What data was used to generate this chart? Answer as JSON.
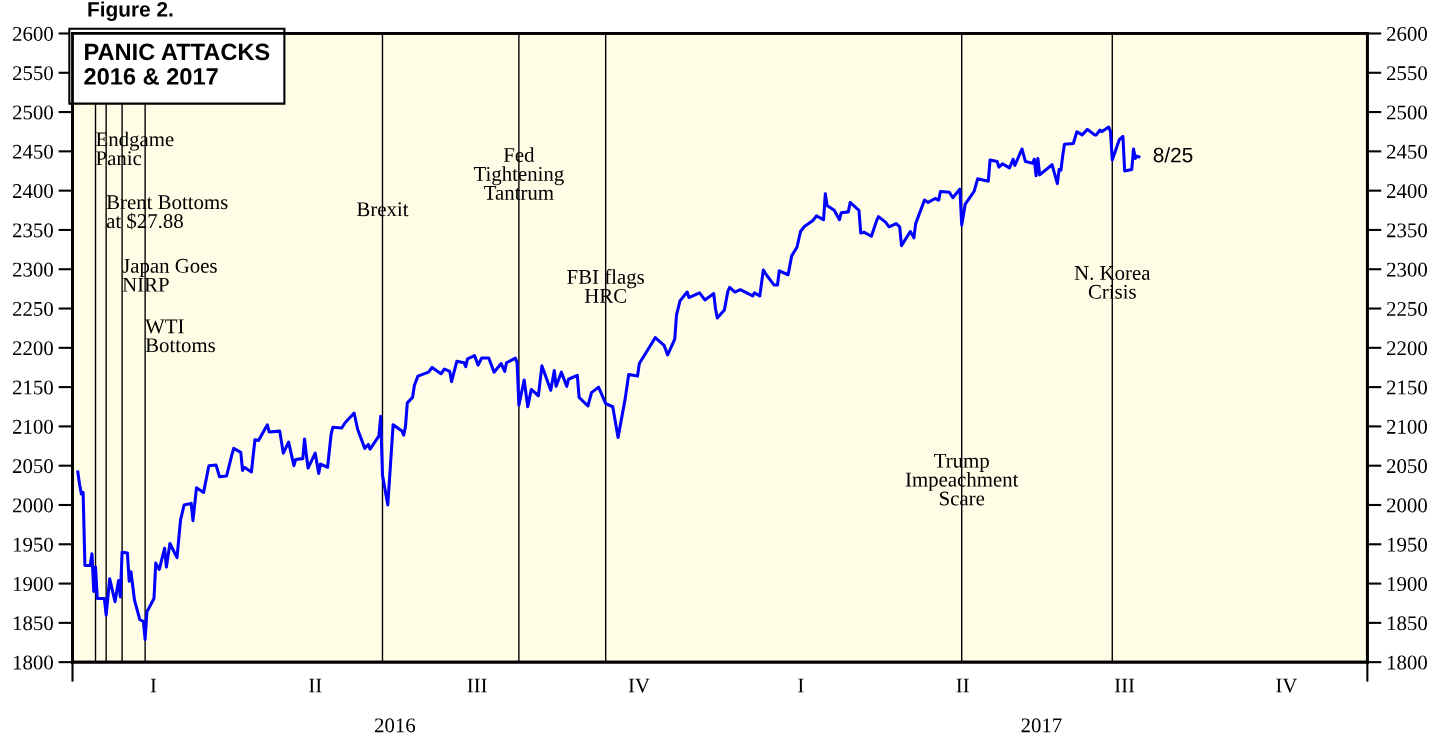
{
  "chart_data": {
    "type": "line",
    "title": "PANIC ATTACKS\n2016 & 2017",
    "series": [
      {
        "color": "#0000ff",
        "x": [
          "2016-01-04",
          "2016-01-05",
          "2016-01-06",
          "2016-01-07",
          "2016-01-08",
          "2016-01-11",
          "2016-01-12",
          "2016-01-13",
          "2016-01-14",
          "2016-01-15",
          "2016-01-19",
          "2016-01-20",
          "2016-01-22",
          "2016-01-25",
          "2016-01-27",
          "2016-01-28",
          "2016-01-29",
          "2016-02-01",
          "2016-02-02",
          "2016-02-03",
          "2016-02-05",
          "2016-02-08",
          "2016-02-10",
          "2016-02-11",
          "2016-02-12",
          "2016-02-16",
          "2016-02-17",
          "2016-02-19",
          "2016-02-22",
          "2016-02-23",
          "2016-02-25",
          "2016-02-29",
          "2016-03-02",
          "2016-03-04",
          "2016-03-08",
          "2016-03-09",
          "2016-03-11",
          "2016-03-15",
          "2016-03-18",
          "2016-03-22",
          "2016-03-24",
          "2016-03-28",
          "2016-03-31",
          "2016-04-01",
          "2016-04-05",
          "2016-04-06",
          "2016-04-07",
          "2016-04-11",
          "2016-04-13",
          "2016-04-15",
          "2016-04-20",
          "2016-04-21",
          "2016-04-27",
          "2016-04-29",
          "2016-05-02",
          "2016-05-05",
          "2016-05-06",
          "2016-05-10",
          "2016-05-11",
          "2016-05-12",
          "2016-05-13",
          "2016-05-17",
          "2016-05-19",
          "2016-05-20",
          "2016-05-24",
          "2016-05-26",
          "2016-05-27",
          "2016-06-01",
          "2016-06-03",
          "2016-06-08",
          "2016-06-10",
          "2016-06-14",
          "2016-06-16",
          "2016-06-17",
          "2016-06-22",
          "2016-06-23",
          "2016-06-24",
          "2016-06-27",
          "2016-06-30",
          "2016-07-05",
          "2016-07-06",
          "2016-07-07",
          "2016-07-08",
          "2016-07-11",
          "2016-07-12",
          "2016-07-14",
          "2016-07-20",
          "2016-07-22",
          "2016-07-27",
          "2016-07-29",
          "2016-08-01",
          "2016-08-02",
          "2016-08-05",
          "2016-08-09",
          "2016-08-10",
          "2016-08-11",
          "2016-08-15",
          "2016-08-17",
          "2016-08-19",
          "2016-08-23",
          "2016-08-26",
          "2016-08-30",
          "2016-09-01",
          "2016-09-02",
          "2016-09-07",
          "2016-09-08",
          "2016-09-09",
          "2016-09-12",
          "2016-09-14",
          "2016-09-16",
          "2016-09-20",
          "2016-09-22",
          "2016-09-27",
          "2016-09-29",
          "2016-09-30",
          "2016-10-03",
          "2016-10-04",
          "2016-10-06",
          "2016-10-07",
          "2016-10-12",
          "2016-10-13",
          "2016-10-18",
          "2016-10-20",
          "2016-10-24",
          "2016-10-28",
          "2016-11-01",
          "2016-11-04",
          "2016-11-08",
          "2016-11-10",
          "2016-11-15",
          "2016-11-16",
          "2016-11-22",
          "2016-11-25",
          "2016-11-30",
          "2016-12-02",
          "2016-12-06",
          "2016-12-07",
          "2016-12-09",
          "2016-12-13",
          "2016-12-14",
          "2016-12-20",
          "2016-12-23",
          "2016-12-28",
          "2016-12-29",
          "2016-12-30",
          "2017-01-03",
          "2017-01-05",
          "2017-01-06",
          "2017-01-09",
          "2017-01-12",
          "2017-01-19",
          "2017-01-20",
          "2017-01-23",
          "2017-01-25",
          "2017-01-27",
          "2017-01-31",
          "2017-02-02",
          "2017-02-03",
          "2017-02-08",
          "2017-02-10",
          "2017-02-13",
          "2017-02-15",
          "2017-02-17",
          "2017-02-22",
          "2017-02-24",
          "2017-02-28",
          "2017-03-01",
          "2017-03-02",
          "2017-03-06",
          "2017-03-09",
          "2017-03-10",
          "2017-03-14",
          "2017-03-15",
          "2017-03-20",
          "2017-03-21",
          "2017-03-23",
          "2017-03-27",
          "2017-03-30",
          "2017-03-31",
          "2017-04-04",
          "2017-04-06",
          "2017-04-10",
          "2017-04-12",
          "2017-04-13",
          "2017-04-18",
          "2017-04-20",
          "2017-04-21",
          "2017-04-26",
          "2017-04-28",
          "2017-05-02",
          "2017-05-04",
          "2017-05-05",
          "2017-05-10",
          "2017-05-12",
          "2017-05-16",
          "2017-05-17",
          "2017-05-19",
          "2017-05-24",
          "2017-05-26",
          "2017-06-01",
          "2017-06-02",
          "2017-06-06",
          "2017-06-07",
          "2017-06-09",
          "2017-06-13",
          "2017-06-15",
          "2017-06-16",
          "2017-06-20",
          "2017-06-22",
          "2017-06-26",
          "2017-06-27",
          "2017-06-28",
          "2017-06-29",
          "2017-06-30",
          "2017-07-07",
          "2017-07-10",
          "2017-07-11",
          "2017-07-12",
          "2017-07-13",
          "2017-07-14",
          "2017-07-19",
          "2017-07-21",
          "2017-07-24",
          "2017-07-27",
          "2017-07-31",
          "2017-08-01",
          "2017-08-03",
          "2017-08-04",
          "2017-08-08",
          "2017-08-09",
          "2017-08-10",
          "2017-08-14",
          "2017-08-16",
          "2017-08-17",
          "2017-08-21",
          "2017-08-22",
          "2017-08-23",
          "2017-08-24",
          "2017-08-25"
        ],
        "values": [
          2042,
          2026,
          2014,
          2016,
          1923,
          1923,
          1938,
          1890,
          1921,
          1881,
          1881,
          1860,
          1906,
          1877,
          1904,
          1883,
          1940,
          1939,
          1903,
          1915,
          1879,
          1854,
          1852,
          1829,
          1864,
          1881,
          1926,
          1918,
          1945,
          1921,
          1951,
          1933,
          1981,
          2000,
          2002,
          1980,
          2022,
          2016,
          2050,
          2051,
          2036,
          2037,
          2064,
          2072,
          2067,
          2044,
          2048,
          2042,
          2083,
          2082,
          2102,
          2093,
          2094,
          2066,
          2080,
          2050,
          2058,
          2059,
          2084,
          2064,
          2047,
          2066,
          2040,
          2052,
          2048,
          2090,
          2099,
          2098,
          2105,
          2117,
          2096,
          2072,
          2077,
          2071,
          2088,
          2113,
          2038,
          2000,
          2102,
          2094,
          2089,
          2100,
          2130,
          2137,
          2152,
          2164,
          2169,
          2175,
          2167,
          2173,
          2170,
          2157,
          2183,
          2181,
          2176,
          2186,
          2190,
          2178,
          2187,
          2187,
          2169,
          2180,
          2170,
          2181,
          2187,
          2181,
          2127,
          2159,
          2125,
          2147,
          2139,
          2177,
          2146,
          2171,
          2151,
          2169,
          2163,
          2151,
          2160,
          2165,
          2137,
          2126,
          2143,
          2150,
          2129,
          2125,
          2086,
          2135,
          2166,
          2164,
          2180,
          2202,
          2213,
          2203,
          2191,
          2211,
          2242,
          2260,
          2271,
          2264,
          2270,
          2261,
          2269,
          2250,
          2238,
          2248,
          2272,
          2277,
          2271,
          2274,
          2266,
          2270,
          2266,
          2299,
          2292,
          2280,
          2280,
          2298,
          2293,
          2317,
          2328,
          2348,
          2354,
          2362,
          2368,
          2363,
          2396,
          2381,
          2375,
          2363,
          2372,
          2373,
          2385,
          2375,
          2346,
          2347,
          2342,
          2362,
          2367,
          2360,
          2354,
          2358,
          2354,
          2330,
          2348,
          2340,
          2358,
          2388,
          2385,
          2390,
          2388,
          2399,
          2398,
          2391,
          2402,
          2356,
          2383,
          2399,
          2415,
          2412,
          2439,
          2437,
          2430,
          2434,
          2429,
          2440,
          2432,
          2453,
          2437,
          2435,
          2440,
          2419,
          2441,
          2420,
          2433,
          2409,
          2427,
          2426,
          2444,
          2459,
          2460,
          2475,
          2471,
          2478,
          2471,
          2471,
          2477,
          2475,
          2481,
          2475,
          2439,
          2465,
          2469,
          2425,
          2427,
          2453,
          2441,
          2444,
          2443
        ]
      }
    ],
    "xlim": [
      "2016-01-01",
      "2018-01-01"
    ],
    "xticks": [
      {
        "value": "2016-01-01",
        "label": null
      },
      {
        "value": "2016-07-01",
        "label": "2016"
      },
      {
        "value": "2017-07-01",
        "label": "2017"
      },
      {
        "value": "2018-01-01",
        "label": null
      }
    ],
    "ylim": [
      1800,
      2600
    ],
    "yticks": [
      1800,
      1850,
      1900,
      1950,
      2000,
      2050,
      2100,
      2150,
      2200,
      2250,
      2300,
      2350,
      2400,
      2450,
      2500,
      2550,
      2600
    ],
    "y2lim": [
      1800,
      2600
    ],
    "y2ticks": [
      1800,
      1850,
      1900,
      1950,
      2000,
      2050,
      2100,
      2150,
      2200,
      2250,
      2300,
      2350,
      2400,
      2450,
      2500,
      2550,
      2600
    ],
    "ref_lines": [
      {
        "axis": "x",
        "value": "2016-01-14",
        "color": "#000000"
      },
      {
        "axis": "x",
        "value": "2016-01-20",
        "color": "#000000"
      },
      {
        "axis": "x",
        "value": "2016-01-29",
        "color": "#000000"
      },
      {
        "axis": "x",
        "value": "2016-02-11",
        "color": "#000000"
      },
      {
        "axis": "x",
        "value": "2016-06-24",
        "color": "#000000"
      },
      {
        "axis": "x",
        "value": "2016-09-09",
        "color": "#000000"
      },
      {
        "axis": "x",
        "value": "2016-10-28",
        "color": "#000000"
      },
      {
        "axis": "x",
        "value": "2017-05-17",
        "color": "#000000"
      },
      {
        "axis": "x",
        "value": "2017-08-10",
        "color": "#000000"
      }
    ],
    "annotations": [
      "Figure 2.",
      "I",
      "II",
      "III",
      "IV",
      "I",
      "II",
      "III",
      "IV",
      {
        "text": "Endgame\nPanic",
        "x": "2016-01-14",
        "y": 2451
      },
      {
        "text": "Brent Bottoms\nat $27.88",
        "x": "2016-01-20",
        "y": 2371
      },
      {
        "text": "Japan Goes\nNIRP",
        "x": "2016-01-29",
        "y": 2290
      },
      {
        "text": "WTI\nBottoms",
        "x": "2016-02-11",
        "y": 2213
      },
      {
        "text": "Brexit",
        "x": "2016-06-24",
        "y": 2374
      },
      {
        "text": "Fed\nTightening\nTantrum",
        "x": "2016-09-09",
        "y": 2419
      },
      {
        "text": "FBI flags\nHRC",
        "x": "2016-10-28",
        "y": 2276
      },
      {
        "text": "Trump\nImpeachment\nScare",
        "x": "2017-05-17",
        "y": 2030
      },
      {
        "text": "N. Korea\nCrisis",
        "x": "2017-08-10",
        "y": 2281
      },
      {
        "text": "8/25",
        "x": "2017-08-25",
        "y": 2443
      }
    ]
  }
}
